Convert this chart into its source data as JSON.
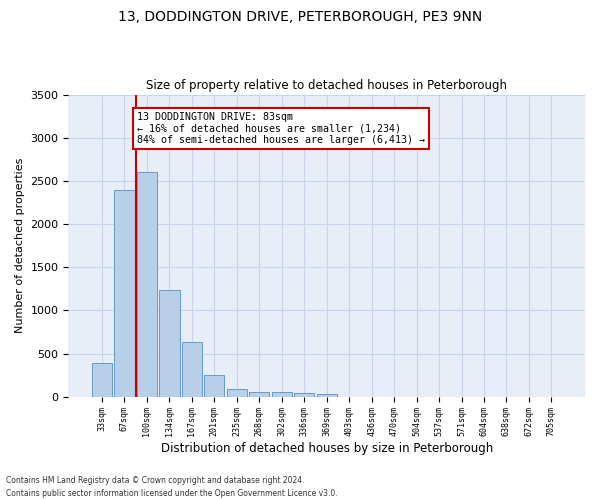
{
  "title_line1": "13, DODDINGTON DRIVE, PETERBOROUGH, PE3 9NN",
  "title_line2": "Size of property relative to detached houses in Peterborough",
  "xlabel": "Distribution of detached houses by size in Peterborough",
  "ylabel": "Number of detached properties",
  "footer_line1": "Contains HM Land Registry data © Crown copyright and database right 2024.",
  "footer_line2": "Contains public sector information licensed under the Open Government Licence v3.0.",
  "categories": [
    "33sqm",
    "67sqm",
    "100sqm",
    "134sqm",
    "167sqm",
    "201sqm",
    "235sqm",
    "268sqm",
    "302sqm",
    "336sqm",
    "369sqm",
    "403sqm",
    "436sqm",
    "470sqm",
    "504sqm",
    "537sqm",
    "571sqm",
    "604sqm",
    "638sqm",
    "672sqm",
    "705sqm"
  ],
  "values": [
    390,
    2400,
    2600,
    1240,
    630,
    255,
    90,
    60,
    55,
    40,
    30,
    0,
    0,
    0,
    0,
    0,
    0,
    0,
    0,
    0,
    0
  ],
  "bar_color": "#b8cfe8",
  "bar_edge_color": "#6699cc",
  "grid_color": "#c8d4e8",
  "background_color": "#e8eef8",
  "vline_color": "#cc0000",
  "vline_x": 1.5,
  "annotation_text": "13 DODDINGTON DRIVE: 83sqm\n← 16% of detached houses are smaller (1,234)\n84% of semi-detached houses are larger (6,413) →",
  "annotation_box_color": "#cc0000",
  "ylim": [
    0,
    3500
  ],
  "yticks": [
    0,
    500,
    1000,
    1500,
    2000,
    2500,
    3000,
    3500
  ]
}
